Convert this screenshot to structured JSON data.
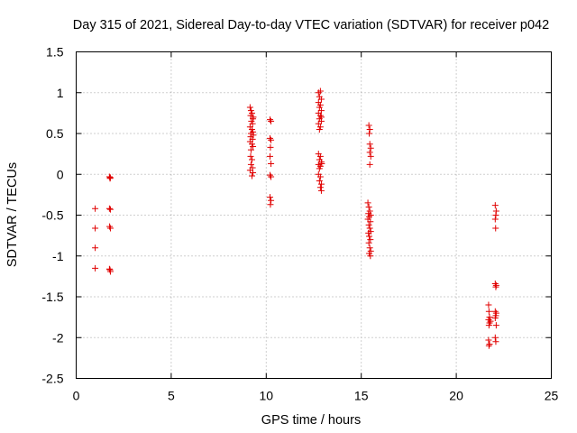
{
  "chart_data": {
    "type": "scatter",
    "title": "Day 315 of 2021, Sidereal Day-to-day VTEC variation (SDTVAR) for receiver p042",
    "xlabel": "GPS time / hours",
    "ylabel": "SDTVAR / TECUs",
    "xlim": [
      0,
      25
    ],
    "ylim": [
      -2.5,
      1.5
    ],
    "xticks": [
      "0",
      "5",
      "10",
      "15",
      "20",
      "25"
    ],
    "yticks": [
      "1.5",
      "1",
      "0.5",
      "0",
      "-0.5",
      "-1",
      "-1.5",
      "-2",
      "-2.5"
    ],
    "grid": true,
    "marker": "+",
    "color": "#e00000",
    "series": [
      {
        "name": "SDTVAR",
        "points": [
          [
            1.0,
            -0.42
          ],
          [
            1.0,
            -0.66
          ],
          [
            1.0,
            -0.9
          ],
          [
            1.0,
            -1.15
          ],
          [
            1.75,
            -0.03
          ],
          [
            1.78,
            -0.05
          ],
          [
            1.8,
            -0.04
          ],
          [
            1.75,
            -0.42
          ],
          [
            1.8,
            -0.43
          ],
          [
            1.76,
            -0.64
          ],
          [
            1.8,
            -0.66
          ],
          [
            1.75,
            -1.16
          ],
          [
            1.8,
            -1.19
          ],
          [
            1.78,
            -1.17
          ],
          [
            9.15,
            0.82
          ],
          [
            9.2,
            0.78
          ],
          [
            9.25,
            0.75
          ],
          [
            9.18,
            0.72
          ],
          [
            9.3,
            0.68
          ],
          [
            9.22,
            0.65
          ],
          [
            9.28,
            0.62
          ],
          [
            9.15,
            0.58
          ],
          [
            9.25,
            0.55
          ],
          [
            9.3,
            0.52
          ],
          [
            9.2,
            0.5
          ],
          [
            9.18,
            0.46
          ],
          [
            9.28,
            0.43
          ],
          [
            9.15,
            0.4
          ],
          [
            9.25,
            0.37
          ],
          [
            9.3,
            0.34
          ],
          [
            9.2,
            0.3
          ],
          [
            9.18,
            0.22
          ],
          [
            9.25,
            0.18
          ],
          [
            9.2,
            0.12
          ],
          [
            9.28,
            0.08
          ],
          [
            9.15,
            0.05
          ],
          [
            9.3,
            0.02
          ],
          [
            9.25,
            -0.02
          ],
          [
            9.32,
            0.7
          ],
          [
            9.32,
            0.48
          ],
          [
            10.2,
            0.67
          ],
          [
            10.25,
            0.65
          ],
          [
            10.2,
            0.44
          ],
          [
            10.25,
            0.42
          ],
          [
            10.22,
            0.33
          ],
          [
            10.2,
            0.22
          ],
          [
            10.25,
            0.13
          ],
          [
            10.2,
            -0.01
          ],
          [
            10.25,
            -0.03
          ],
          [
            10.2,
            -0.28
          ],
          [
            10.25,
            -0.32
          ],
          [
            10.22,
            -0.37
          ],
          [
            12.75,
            1.0
          ],
          [
            12.85,
            1.02
          ],
          [
            12.8,
            0.95
          ],
          [
            12.9,
            0.92
          ],
          [
            12.75,
            0.88
          ],
          [
            12.85,
            0.85
          ],
          [
            12.8,
            0.82
          ],
          [
            12.9,
            0.78
          ],
          [
            12.75,
            0.75
          ],
          [
            12.85,
            0.72
          ],
          [
            12.8,
            0.68
          ],
          [
            12.9,
            0.65
          ],
          [
            12.75,
            0.62
          ],
          [
            12.85,
            0.58
          ],
          [
            12.8,
            0.55
          ],
          [
            12.9,
            0.7
          ],
          [
            12.75,
            0.25
          ],
          [
            12.85,
            0.22
          ],
          [
            12.8,
            0.18
          ],
          [
            12.9,
            0.15
          ],
          [
            12.75,
            0.12
          ],
          [
            12.85,
            0.1
          ],
          [
            12.8,
            0.07
          ],
          [
            12.92,
            0.13
          ],
          [
            12.75,
            0.0
          ],
          [
            12.85,
            -0.03
          ],
          [
            12.8,
            -0.08
          ],
          [
            12.9,
            -0.12
          ],
          [
            12.85,
            -0.16
          ],
          [
            12.9,
            -0.2
          ],
          [
            15.4,
            0.6
          ],
          [
            15.45,
            0.55
          ],
          [
            15.42,
            0.5
          ],
          [
            15.45,
            0.37
          ],
          [
            15.5,
            0.32
          ],
          [
            15.45,
            0.27
          ],
          [
            15.5,
            0.22
          ],
          [
            15.45,
            0.12
          ],
          [
            15.35,
            -0.35
          ],
          [
            15.4,
            -0.4
          ],
          [
            15.45,
            -0.45
          ],
          [
            15.38,
            -0.48
          ],
          [
            15.5,
            -0.5
          ],
          [
            15.42,
            -0.52
          ],
          [
            15.35,
            -0.55
          ],
          [
            15.48,
            -0.58
          ],
          [
            15.4,
            -0.62
          ],
          [
            15.45,
            -0.66
          ],
          [
            15.5,
            -0.7
          ],
          [
            15.38,
            -0.72
          ],
          [
            15.42,
            -0.76
          ],
          [
            15.48,
            -0.8
          ],
          [
            15.4,
            -0.84
          ],
          [
            15.45,
            -0.9
          ],
          [
            15.5,
            -0.94
          ],
          [
            15.42,
            -0.97
          ],
          [
            15.48,
            -1.0
          ],
          [
            21.7,
            -1.6
          ],
          [
            21.72,
            -1.68
          ],
          [
            21.75,
            -1.75
          ],
          [
            21.7,
            -1.78
          ],
          [
            21.8,
            -1.8
          ],
          [
            21.75,
            -1.82
          ],
          [
            21.72,
            -1.85
          ],
          [
            21.7,
            -2.03
          ],
          [
            21.75,
            -2.08
          ],
          [
            21.72,
            -2.1
          ],
          [
            22.05,
            -0.38
          ],
          [
            22.1,
            -0.45
          ],
          [
            22.08,
            -0.5
          ],
          [
            22.05,
            -0.55
          ],
          [
            22.07,
            -0.66
          ],
          [
            22.05,
            -1.34
          ],
          [
            22.1,
            -1.36
          ],
          [
            22.08,
            -1.38
          ],
          [
            22.05,
            -1.68
          ],
          [
            22.1,
            -1.7
          ],
          [
            22.08,
            -1.73
          ],
          [
            22.05,
            -1.76
          ],
          [
            22.1,
            -1.85
          ],
          [
            22.05,
            -2.0
          ],
          [
            22.08,
            -2.05
          ]
        ]
      }
    ]
  }
}
